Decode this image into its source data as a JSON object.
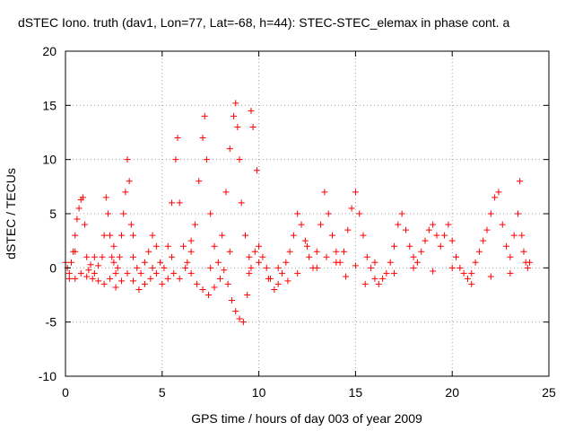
{
  "chart_data": {
    "type": "scatter",
    "title": "dSTEC Iono. truth (dav1, Lon=77, Lat=-68, h=44): STEC-STEC_elemax in phase cont. a",
    "xlabel": "GPS time / hours of day 003 of year 2009",
    "ylabel": "dSTEC  / TECUs",
    "xlim": [
      0,
      25
    ],
    "ylim": [
      -10,
      20
    ],
    "xticks": [
      0,
      5,
      10,
      15,
      20,
      25
    ],
    "yticks": [
      -10,
      -5,
      0,
      5,
      10,
      15,
      20
    ],
    "xtick_labels": [
      "0",
      "5",
      "10",
      "15",
      "20",
      "25"
    ],
    "ytick_labels": [
      "-10",
      "-5",
      "0",
      "5",
      "10",
      "15",
      "20"
    ],
    "grid": true,
    "marker": "+",
    "color": "#ff0000",
    "series": [
      {
        "values": [
          [
            0.0,
            0.5
          ],
          [
            0.1,
            0.0
          ],
          [
            0.2,
            -0.5
          ],
          [
            0.3,
            0.5
          ],
          [
            0.4,
            1.5
          ],
          [
            0.5,
            3.0
          ],
          [
            0.6,
            4.5
          ],
          [
            0.7,
            5.5
          ],
          [
            0.8,
            6.3
          ],
          [
            0.9,
            6.5
          ],
          [
            1.0,
            4.0
          ],
          [
            1.1,
            1.0
          ],
          [
            1.2,
            -0.2
          ],
          [
            1.3,
            0.3
          ],
          [
            1.5,
            -0.5
          ],
          [
            1.7,
            0.2
          ],
          [
            1.9,
            1.0
          ],
          [
            2.0,
            3.0
          ],
          [
            2.1,
            6.5
          ],
          [
            2.2,
            5.0
          ],
          [
            2.3,
            3.0
          ],
          [
            2.4,
            1.0
          ],
          [
            2.5,
            0.5
          ],
          [
            2.6,
            -0.5
          ],
          [
            2.7,
            0.0
          ],
          [
            2.8,
            1.0
          ],
          [
            2.9,
            3.0
          ],
          [
            3.0,
            5.0
          ],
          [
            3.1,
            7.0
          ],
          [
            3.2,
            10.0
          ],
          [
            3.3,
            8.0
          ],
          [
            3.4,
            4.0
          ],
          [
            3.5,
            1.0
          ],
          [
            3.7,
            0.0
          ],
          [
            3.9,
            -0.5
          ],
          [
            4.1,
            0.5
          ],
          [
            4.3,
            1.5
          ],
          [
            4.5,
            3.0
          ],
          [
            4.7,
            2.0
          ],
          [
            4.9,
            0.5
          ],
          [
            5.1,
            0.0
          ],
          [
            5.3,
            2.0
          ],
          [
            5.5,
            6.0
          ],
          [
            5.7,
            10.0
          ],
          [
            5.8,
            12.0
          ],
          [
            5.9,
            6.0
          ],
          [
            6.1,
            2.0
          ],
          [
            6.3,
            0.5
          ],
          [
            6.5,
            1.5
          ],
          [
            6.7,
            4.0
          ],
          [
            6.9,
            8.0
          ],
          [
            7.1,
            12.0
          ],
          [
            7.2,
            14.0
          ],
          [
            7.3,
            10.0
          ],
          [
            7.5,
            5.0
          ],
          [
            7.7,
            2.0
          ],
          [
            7.9,
            0.5
          ],
          [
            8.1,
            3.0
          ],
          [
            8.3,
            7.0
          ],
          [
            8.5,
            11.0
          ],
          [
            8.7,
            14.0
          ],
          [
            8.8,
            15.2
          ],
          [
            8.9,
            13.0
          ],
          [
            9.0,
            10.0
          ],
          [
            9.1,
            6.0
          ],
          [
            9.3,
            3.0
          ],
          [
            9.5,
            1.0
          ],
          [
            9.6,
            14.5
          ],
          [
            9.7,
            13.0
          ],
          [
            9.9,
            9.0
          ]
        ]
      },
      {
        "values": [
          [
            0.2,
            -1.0
          ],
          [
            0.5,
            -1.0
          ],
          [
            0.8,
            -0.5
          ],
          [
            1.1,
            -0.8
          ],
          [
            1.4,
            -1.0
          ],
          [
            1.7,
            -1.2
          ],
          [
            2.0,
            -1.5
          ],
          [
            2.3,
            -1.0
          ],
          [
            2.6,
            -1.8
          ],
          [
            2.9,
            -1.2
          ],
          [
            3.2,
            -0.5
          ],
          [
            3.5,
            -1.2
          ],
          [
            3.8,
            -2.0
          ],
          [
            4.1,
            -1.5
          ],
          [
            4.4,
            -1.0
          ],
          [
            4.7,
            -0.5
          ],
          [
            5.0,
            -1.5
          ],
          [
            5.3,
            -1.0
          ],
          [
            5.6,
            -0.5
          ],
          [
            5.9,
            -1.0
          ],
          [
            6.2,
            0.0
          ],
          [
            6.5,
            -0.5
          ],
          [
            6.8,
            -1.5
          ],
          [
            7.1,
            -2.0
          ],
          [
            7.4,
            -2.5
          ],
          [
            7.7,
            -1.8
          ],
          [
            8.0,
            -1.0
          ],
          [
            8.2,
            -0.2
          ],
          [
            8.4,
            -1.5
          ],
          [
            8.6,
            -3.0
          ],
          [
            8.8,
            -4.0
          ],
          [
            9.0,
            -4.7
          ],
          [
            9.2,
            -5.0
          ],
          [
            9.4,
            -2.5
          ],
          [
            9.6,
            0.0
          ],
          [
            9.8,
            1.5
          ],
          [
            10.0,
            2.0
          ],
          [
            10.2,
            1.0
          ],
          [
            10.4,
            0.0
          ],
          [
            10.6,
            -1.0
          ],
          [
            10.8,
            -2.0
          ],
          [
            11.0,
            -1.5
          ],
          [
            11.2,
            -0.5
          ],
          [
            11.4,
            0.5
          ],
          [
            11.6,
            1.5
          ],
          [
            11.8,
            3.0
          ],
          [
            12.0,
            5.0
          ],
          [
            12.2,
            4.0
          ],
          [
            12.4,
            2.5
          ],
          [
            12.6,
            1.0
          ],
          [
            12.8,
            0.0
          ],
          [
            13.0,
            1.5
          ],
          [
            13.2,
            4.0
          ],
          [
            13.4,
            7.0
          ],
          [
            13.6,
            5.0
          ],
          [
            13.8,
            3.0
          ],
          [
            14.0,
            1.5
          ],
          [
            14.2,
            0.5
          ],
          [
            14.4,
            1.5
          ],
          [
            14.6,
            3.5
          ],
          [
            14.8,
            5.5
          ],
          [
            15.0,
            7.0
          ],
          [
            15.2,
            5.0
          ],
          [
            15.4,
            3.0
          ],
          [
            15.6,
            1.0
          ],
          [
            15.8,
            0.0
          ],
          [
            16.0,
            -1.0
          ],
          [
            16.2,
            -1.5
          ],
          [
            16.4,
            -1.0
          ],
          [
            16.6,
            -0.5
          ]
        ]
      },
      {
        "values": [
          [
            16.8,
            0.5
          ],
          [
            17.0,
            2.0
          ],
          [
            17.2,
            4.0
          ],
          [
            17.4,
            5.0
          ],
          [
            17.6,
            3.5
          ],
          [
            17.8,
            2.0
          ],
          [
            18.0,
            1.0
          ],
          [
            18.2,
            0.5
          ],
          [
            18.4,
            1.5
          ],
          [
            18.6,
            2.5
          ],
          [
            18.8,
            3.5
          ],
          [
            19.0,
            4.0
          ],
          [
            19.2,
            3.0
          ],
          [
            19.4,
            2.0
          ],
          [
            19.6,
            3.0
          ],
          [
            19.8,
            4.0
          ],
          [
            20.0,
            2.5
          ],
          [
            20.2,
            1.0
          ],
          [
            20.4,
            0.0
          ],
          [
            20.6,
            -0.5
          ],
          [
            20.8,
            -1.0
          ],
          [
            21.0,
            -0.5
          ],
          [
            21.2,
            0.5
          ],
          [
            21.4,
            1.5
          ],
          [
            21.6,
            2.5
          ],
          [
            21.8,
            3.5
          ],
          [
            22.0,
            5.0
          ],
          [
            22.2,
            6.5
          ],
          [
            22.4,
            7.0
          ],
          [
            22.6,
            4.0
          ],
          [
            22.8,
            2.0
          ],
          [
            23.0,
            1.0
          ],
          [
            23.2,
            3.0
          ],
          [
            23.4,
            5.0
          ],
          [
            23.5,
            8.0
          ],
          [
            23.6,
            3.0
          ],
          [
            23.7,
            1.5
          ],
          [
            23.8,
            0.5
          ],
          [
            23.9,
            0.0
          ],
          [
            24.0,
            0.5
          ],
          [
            10.0,
            0.5
          ],
          [
            11.0,
            0.0
          ],
          [
            12.0,
            -0.5
          ],
          [
            13.0,
            0.0
          ],
          [
            14.0,
            0.5
          ],
          [
            15.0,
            0.2
          ],
          [
            16.0,
            0.5
          ],
          [
            17.0,
            -0.5
          ],
          [
            18.0,
            0.0
          ],
          [
            19.0,
            -0.3
          ],
          [
            20.0,
            0.0
          ],
          [
            21.0,
            -1.5
          ],
          [
            22.0,
            -0.8
          ],
          [
            23.0,
            -0.5
          ],
          [
            0.5,
            1.5
          ],
          [
            1.5,
            1.0
          ],
          [
            2.5,
            2.0
          ],
          [
            3.5,
            3.0
          ],
          [
            4.5,
            0.0
          ],
          [
            5.5,
            1.0
          ],
          [
            6.5,
            2.5
          ],
          [
            7.5,
            0.0
          ],
          [
            8.5,
            1.5
          ],
          [
            9.5,
            -0.5
          ],
          [
            10.5,
            -1.0
          ],
          [
            11.5,
            -1.2
          ],
          [
            12.5,
            2.0
          ],
          [
            13.5,
            1.0
          ],
          [
            14.5,
            -0.8
          ],
          [
            15.5,
            -1.5
          ]
        ]
      }
    ]
  }
}
